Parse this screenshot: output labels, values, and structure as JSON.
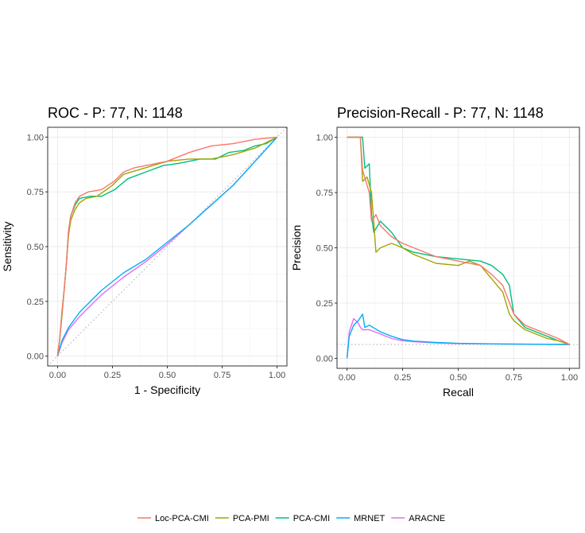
{
  "chart_data": [
    {
      "type": "line",
      "title": "ROC - P: 77, N: 1148",
      "xlabel": "1 - Specificity",
      "ylabel": "Sensitivity",
      "xlim": [
        0,
        1
      ],
      "ylim": [
        0,
        1
      ],
      "xticks": [
        "0.00",
        "0.25",
        "0.50",
        "0.75",
        "1.00"
      ],
      "yticks": [
        "0.00",
        "0.25",
        "0.50",
        "0.75",
        "1.00"
      ],
      "grid": true,
      "reference_line": {
        "type": "diagonal",
        "style": "dotted"
      },
      "series": [
        {
          "name": "Loc-PCA-CMI",
          "color": "#F8766D",
          "points": [
            [
              0,
              0
            ],
            [
              0.01,
              0.08
            ],
            [
              0.02,
              0.2
            ],
            [
              0.03,
              0.3
            ],
            [
              0.04,
              0.42
            ],
            [
              0.05,
              0.57
            ],
            [
              0.06,
              0.64
            ],
            [
              0.08,
              0.7
            ],
            [
              0.1,
              0.73
            ],
            [
              0.14,
              0.75
            ],
            [
              0.2,
              0.76
            ],
            [
              0.26,
              0.8
            ],
            [
              0.3,
              0.84
            ],
            [
              0.35,
              0.86
            ],
            [
              0.4,
              0.87
            ],
            [
              0.5,
              0.89
            ],
            [
              0.6,
              0.93
            ],
            [
              0.7,
              0.96
            ],
            [
              0.8,
              0.97
            ],
            [
              0.9,
              0.99
            ],
            [
              1,
              1
            ]
          ]
        },
        {
          "name": "PCA-PMI",
          "color": "#A3A500",
          "points": [
            [
              0,
              0
            ],
            [
              0.01,
              0.08
            ],
            [
              0.02,
              0.18
            ],
            [
              0.03,
              0.3
            ],
            [
              0.04,
              0.42
            ],
            [
              0.05,
              0.55
            ],
            [
              0.06,
              0.62
            ],
            [
              0.08,
              0.67
            ],
            [
              0.1,
              0.7
            ],
            [
              0.13,
              0.72
            ],
            [
              0.18,
              0.73
            ],
            [
              0.25,
              0.78
            ],
            [
              0.3,
              0.83
            ],
            [
              0.4,
              0.86
            ],
            [
              0.5,
              0.89
            ],
            [
              0.6,
              0.9
            ],
            [
              0.7,
              0.9
            ],
            [
              0.8,
              0.92
            ],
            [
              0.9,
              0.95
            ],
            [
              1,
              1
            ]
          ]
        },
        {
          "name": "PCA-CMI",
          "color": "#00BF7D",
          "points": [
            [
              0,
              0
            ],
            [
              0.01,
              0.08
            ],
            [
              0.02,
              0.2
            ],
            [
              0.03,
              0.3
            ],
            [
              0.04,
              0.42
            ],
            [
              0.05,
              0.57
            ],
            [
              0.06,
              0.64
            ],
            [
              0.08,
              0.69
            ],
            [
              0.1,
              0.72
            ],
            [
              0.15,
              0.73
            ],
            [
              0.2,
              0.73
            ],
            [
              0.26,
              0.76
            ],
            [
              0.32,
              0.81
            ],
            [
              0.4,
              0.84
            ],
            [
              0.48,
              0.87
            ],
            [
              0.55,
              0.88
            ],
            [
              0.65,
              0.9
            ],
            [
              0.72,
              0.9
            ],
            [
              0.78,
              0.93
            ],
            [
              0.85,
              0.94
            ],
            [
              0.9,
              0.96
            ],
            [
              0.95,
              0.97
            ],
            [
              1,
              1
            ]
          ]
        },
        {
          "name": "MRNET",
          "color": "#00B0F6",
          "points": [
            [
              0,
              0
            ],
            [
              0.02,
              0.07
            ],
            [
              0.05,
              0.13
            ],
            [
              0.1,
              0.2
            ],
            [
              0.15,
              0.25
            ],
            [
              0.2,
              0.3
            ],
            [
              0.3,
              0.38
            ],
            [
              0.4,
              0.44
            ],
            [
              0.5,
              0.52
            ],
            [
              0.6,
              0.6
            ],
            [
              0.7,
              0.69
            ],
            [
              0.8,
              0.78
            ],
            [
              0.9,
              0.89
            ],
            [
              1,
              1
            ]
          ]
        },
        {
          "name": "ARACNE",
          "color": "#E76BF3",
          "points": [
            [
              0,
              0
            ],
            [
              0.02,
              0.06
            ],
            [
              0.05,
              0.12
            ],
            [
              0.1,
              0.18
            ],
            [
              0.15,
              0.23
            ],
            [
              0.2,
              0.28
            ],
            [
              0.3,
              0.36
            ],
            [
              0.4,
              0.43
            ],
            [
              0.5,
              0.51
            ],
            [
              0.6,
              0.6
            ],
            [
              0.7,
              0.69
            ],
            [
              0.8,
              0.78
            ],
            [
              0.9,
              0.89
            ],
            [
              1,
              1
            ]
          ]
        }
      ]
    },
    {
      "type": "line",
      "title": "Precision-Recall - P: 77, N: 1148",
      "xlabel": "Recall",
      "ylabel": "Precision",
      "xlim": [
        0,
        1
      ],
      "ylim": [
        0,
        1
      ],
      "xticks": [
        "0.00",
        "0.25",
        "0.50",
        "0.75",
        "1.00"
      ],
      "yticks": [
        "0.00",
        "0.25",
        "0.50",
        "0.75",
        "1.00"
      ],
      "grid": true,
      "reference_line": {
        "type": "horizontal",
        "y": 0.063,
        "style": "dotted"
      },
      "series": [
        {
          "name": "Loc-PCA-CMI",
          "color": "#F8766D",
          "points": [
            [
              0,
              1
            ],
            [
              0.06,
              1
            ],
            [
              0.07,
              0.85
            ],
            [
              0.1,
              0.75
            ],
            [
              0.11,
              0.62
            ],
            [
              0.13,
              0.65
            ],
            [
              0.15,
              0.6
            ],
            [
              0.2,
              0.55
            ],
            [
              0.25,
              0.52
            ],
            [
              0.3,
              0.5
            ],
            [
              0.35,
              0.48
            ],
            [
              0.4,
              0.46
            ],
            [
              0.5,
              0.44
            ],
            [
              0.6,
              0.42
            ],
            [
              0.65,
              0.38
            ],
            [
              0.7,
              0.33
            ],
            [
              0.75,
              0.2
            ],
            [
              0.8,
              0.15
            ],
            [
              0.85,
              0.13
            ],
            [
              0.9,
              0.11
            ],
            [
              0.95,
              0.09
            ],
            [
              1,
              0.063
            ]
          ]
        },
        {
          "name": "PCA-PMI",
          "color": "#A3A500",
          "points": [
            [
              0,
              1
            ],
            [
              0.06,
              1
            ],
            [
              0.07,
              0.8
            ],
            [
              0.09,
              0.82
            ],
            [
              0.11,
              0.75
            ],
            [
              0.13,
              0.48
            ],
            [
              0.15,
              0.5
            ],
            [
              0.2,
              0.52
            ],
            [
              0.25,
              0.5
            ],
            [
              0.3,
              0.47
            ],
            [
              0.35,
              0.45
            ],
            [
              0.4,
              0.43
            ],
            [
              0.5,
              0.42
            ],
            [
              0.55,
              0.44
            ],
            [
              0.6,
              0.42
            ],
            [
              0.65,
              0.36
            ],
            [
              0.7,
              0.3
            ],
            [
              0.73,
              0.2
            ],
            [
              0.75,
              0.17
            ],
            [
              0.8,
              0.13
            ],
            [
              0.85,
              0.11
            ],
            [
              0.9,
              0.09
            ],
            [
              0.95,
              0.08
            ],
            [
              1,
              0.063
            ]
          ]
        },
        {
          "name": "PCA-CMI",
          "color": "#00BF7D",
          "points": [
            [
              0,
              1
            ],
            [
              0.07,
              1
            ],
            [
              0.08,
              0.86
            ],
            [
              0.1,
              0.88
            ],
            [
              0.11,
              0.65
            ],
            [
              0.12,
              0.57
            ],
            [
              0.15,
              0.62
            ],
            [
              0.2,
              0.57
            ],
            [
              0.25,
              0.5
            ],
            [
              0.3,
              0.48
            ],
            [
              0.35,
              0.47
            ],
            [
              0.4,
              0.46
            ],
            [
              0.5,
              0.45
            ],
            [
              0.6,
              0.44
            ],
            [
              0.65,
              0.42
            ],
            [
              0.7,
              0.38
            ],
            [
              0.73,
              0.33
            ],
            [
              0.75,
              0.2
            ],
            [
              0.8,
              0.14
            ],
            [
              0.85,
              0.12
            ],
            [
              0.9,
              0.1
            ],
            [
              0.95,
              0.08
            ],
            [
              1,
              0.063
            ]
          ]
        },
        {
          "name": "MRNET",
          "color": "#00B0F6",
          "points": [
            [
              0,
              0
            ],
            [
              0.01,
              0.1
            ],
            [
              0.03,
              0.15
            ],
            [
              0.05,
              0.17
            ],
            [
              0.07,
              0.2
            ],
            [
              0.08,
              0.14
            ],
            [
              0.1,
              0.15
            ],
            [
              0.15,
              0.12
            ],
            [
              0.2,
              0.1
            ],
            [
              0.25,
              0.085
            ],
            [
              0.3,
              0.078
            ],
            [
              0.4,
              0.072
            ],
            [
              0.5,
              0.068
            ],
            [
              0.7,
              0.065
            ],
            [
              1,
              0.063
            ]
          ]
        },
        {
          "name": "ARACNE",
          "color": "#E76BF3",
          "points": [
            [
              0,
              0
            ],
            [
              0.01,
              0.12
            ],
            [
              0.03,
              0.18
            ],
            [
              0.05,
              0.16
            ],
            [
              0.06,
              0.14
            ],
            [
              0.07,
              0.13
            ],
            [
              0.1,
              0.13
            ],
            [
              0.15,
              0.11
            ],
            [
              0.2,
              0.09
            ],
            [
              0.25,
              0.08
            ],
            [
              0.3,
              0.075
            ],
            [
              0.4,
              0.07
            ],
            [
              0.5,
              0.067
            ],
            [
              0.7,
              0.065
            ],
            [
              1,
              0.063
            ]
          ]
        }
      ]
    }
  ],
  "legend": {
    "placement": "bottom",
    "entries": [
      {
        "label": "Loc-PCA-CMI",
        "color": "#F8766D"
      },
      {
        "label": "PCA-PMI",
        "color": "#A3A500"
      },
      {
        "label": "PCA-CMI",
        "color": "#00BF7D"
      },
      {
        "label": "MRNET",
        "color": "#00B0F6"
      },
      {
        "label": "ARACNE",
        "color": "#E76BF3"
      }
    ]
  }
}
